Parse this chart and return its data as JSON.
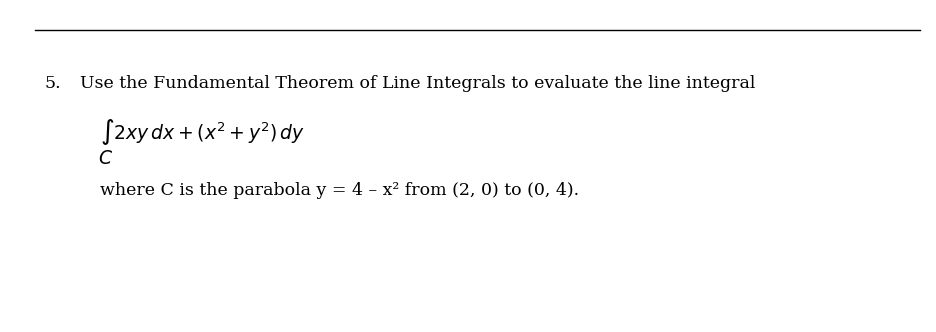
{
  "background_color": "#ffffff",
  "line_color": "#000000",
  "number_text": "5.",
  "main_text": "Use the Fundamental Theorem of Line Integrals to evaluate the line integral",
  "integral_line1": "$\\int 2xy\\,dx + (x^{2} + y^{2})\\,dy$",
  "integral_C": "$C$",
  "where_text": "where C is the parabola y = 4 – x² from (2, 0) to (0, 4).",
  "font_family": "serif",
  "main_fontsize": 12.5,
  "integral_fontsize": 13.5,
  "where_fontsize": 12.5,
  "text_color": "#000000"
}
